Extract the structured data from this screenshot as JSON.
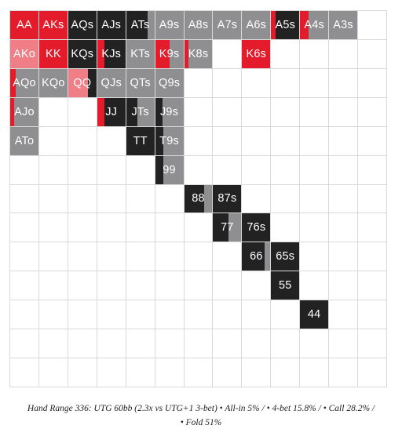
{
  "colors": {
    "allin": "#222222",
    "fourbet": "#e31b2b",
    "call": "#8f8f91",
    "fourbet_light": "#ef7e87",
    "call_light": "#cdcdcf",
    "empty": "#ffffff",
    "border": "#d9d9d9"
  },
  "grid": {
    "cells": [
      {
        "row": 0,
        "col": 0,
        "label": "AA",
        "segs": [
          [
            "fourbet",
            1
          ]
        ]
      },
      {
        "row": 0,
        "col": 1,
        "label": "AKs",
        "segs": [
          [
            "fourbet",
            1
          ]
        ]
      },
      {
        "row": 0,
        "col": 2,
        "label": "AQs",
        "segs": [
          [
            "allin",
            1
          ]
        ]
      },
      {
        "row": 0,
        "col": 3,
        "label": "AJs",
        "segs": [
          [
            "allin",
            1
          ]
        ]
      },
      {
        "row": 0,
        "col": 4,
        "label": "ATs",
        "segs": [
          [
            "allin",
            0.75
          ],
          [
            "call",
            0.25
          ]
        ]
      },
      {
        "row": 0,
        "col": 5,
        "label": "A9s",
        "segs": [
          [
            "call",
            1
          ]
        ]
      },
      {
        "row": 0,
        "col": 6,
        "label": "A8s",
        "segs": [
          [
            "call",
            1
          ]
        ]
      },
      {
        "row": 0,
        "col": 7,
        "label": "A7s",
        "segs": [
          [
            "call",
            1
          ]
        ]
      },
      {
        "row": 0,
        "col": 8,
        "label": "A6s",
        "segs": [
          [
            "call",
            1
          ]
        ]
      },
      {
        "row": 0,
        "col": 9,
        "label": "A5s",
        "segs": [
          [
            "fourbet",
            0.15
          ],
          [
            "allin",
            0.85
          ]
        ]
      },
      {
        "row": 0,
        "col": 10,
        "label": "A4s",
        "segs": [
          [
            "fourbet",
            0.3
          ],
          [
            "call",
            0.7
          ]
        ]
      },
      {
        "row": 0,
        "col": 11,
        "label": "A3s",
        "segs": [
          [
            "call",
            1
          ]
        ]
      },
      {
        "row": 1,
        "col": 0,
        "label": "AKo",
        "segs": [
          [
            "fourbet_light",
            1
          ]
        ]
      },
      {
        "row": 1,
        "col": 1,
        "label": "KK",
        "segs": [
          [
            "fourbet",
            1
          ]
        ]
      },
      {
        "row": 1,
        "col": 2,
        "label": "KQs",
        "segs": [
          [
            "allin",
            1
          ]
        ]
      },
      {
        "row": 1,
        "col": 3,
        "label": "KJs",
        "segs": [
          [
            "fourbet",
            0.25
          ],
          [
            "allin",
            0.75
          ]
        ]
      },
      {
        "row": 1,
        "col": 4,
        "label": "KTs",
        "segs": [
          [
            "call",
            1
          ]
        ]
      },
      {
        "row": 1,
        "col": 5,
        "label": "K9s",
        "segs": [
          [
            "fourbet",
            0.5
          ],
          [
            "call",
            0.5
          ]
        ]
      },
      {
        "row": 1,
        "col": 6,
        "label": "K8s",
        "segs": [
          [
            "fourbet",
            0.15
          ],
          [
            "call",
            0.85
          ]
        ]
      },
      {
        "row": 1,
        "col": 8,
        "label": "K6s",
        "segs": [
          [
            "fourbet",
            1
          ]
        ]
      },
      {
        "row": 2,
        "col": 0,
        "label": "AQo",
        "segs": [
          [
            "fourbet",
            0.2
          ],
          [
            "call",
            0.8
          ]
        ]
      },
      {
        "row": 2,
        "col": 1,
        "label": "KQo",
        "segs": [
          [
            "call",
            1
          ]
        ]
      },
      {
        "row": 2,
        "col": 2,
        "label": "QQ",
        "segs": [
          [
            "fourbet_light",
            0.7
          ],
          [
            "allin",
            0.3
          ]
        ]
      },
      {
        "row": 2,
        "col": 3,
        "label": "QJs",
        "segs": [
          [
            "call",
            1
          ]
        ]
      },
      {
        "row": 2,
        "col": 4,
        "label": "QTs",
        "segs": [
          [
            "call",
            1
          ]
        ]
      },
      {
        "row": 2,
        "col": 5,
        "label": "Q9s",
        "segs": [
          [
            "call",
            1
          ]
        ]
      },
      {
        "row": 3,
        "col": 0,
        "label": "AJo",
        "segs": [
          [
            "fourbet",
            0.15
          ],
          [
            "call",
            0.85
          ]
        ]
      },
      {
        "row": 3,
        "col": 3,
        "label": "JJ",
        "segs": [
          [
            "fourbet",
            0.25
          ],
          [
            "allin",
            0.75
          ]
        ]
      },
      {
        "row": 3,
        "col": 4,
        "label": "JTs",
        "segs": [
          [
            "allin",
            0.4
          ],
          [
            "call",
            0.6
          ]
        ]
      },
      {
        "row": 3,
        "col": 5,
        "label": "J9s",
        "segs": [
          [
            "allin",
            0.25
          ],
          [
            "call",
            0.75
          ]
        ]
      },
      {
        "row": 4,
        "col": 0,
        "label": "ATo",
        "segs": [
          [
            "call",
            1
          ]
        ]
      },
      {
        "row": 4,
        "col": 4,
        "label": "TT",
        "segs": [
          [
            "allin",
            1
          ]
        ]
      },
      {
        "row": 4,
        "col": 5,
        "label": "T9s",
        "segs": [
          [
            "allin",
            0.3
          ],
          [
            "call",
            0.7
          ]
        ]
      },
      {
        "row": 5,
        "col": 5,
        "label": "99",
        "segs": [
          [
            "allin",
            0.3
          ],
          [
            "call",
            0.7
          ]
        ]
      },
      {
        "row": 6,
        "col": 6,
        "label": "88",
        "segs": [
          [
            "allin",
            0.7
          ],
          [
            "call",
            0.3
          ]
        ]
      },
      {
        "row": 6,
        "col": 7,
        "label": "87s",
        "segs": [
          [
            "allin",
            1
          ]
        ]
      },
      {
        "row": 7,
        "col": 7,
        "label": "77",
        "segs": [
          [
            "allin",
            0.55
          ],
          [
            "call",
            0.45
          ]
        ]
      },
      {
        "row": 7,
        "col": 8,
        "label": "76s",
        "segs": [
          [
            "allin",
            1
          ]
        ]
      },
      {
        "row": 8,
        "col": 8,
        "label": "66",
        "segs": [
          [
            "allin",
            0.8
          ],
          [
            "call",
            0.2
          ]
        ]
      },
      {
        "row": 8,
        "col": 9,
        "label": "65s",
        "segs": [
          [
            "allin",
            1
          ]
        ]
      },
      {
        "row": 9,
        "col": 9,
        "label": "55",
        "segs": [
          [
            "allin",
            1
          ]
        ]
      },
      {
        "row": 10,
        "col": 10,
        "label": "44",
        "segs": [
          [
            "allin",
            1
          ]
        ]
      }
    ]
  },
  "caption": {
    "line1": "Hand Range 336: UTG 60bb (2.3x vs UTG+1 3-bet) • All-in 5% / • 4-bet 15.8% / • Call 28.2% /",
    "line2": "• Fold 51%"
  }
}
